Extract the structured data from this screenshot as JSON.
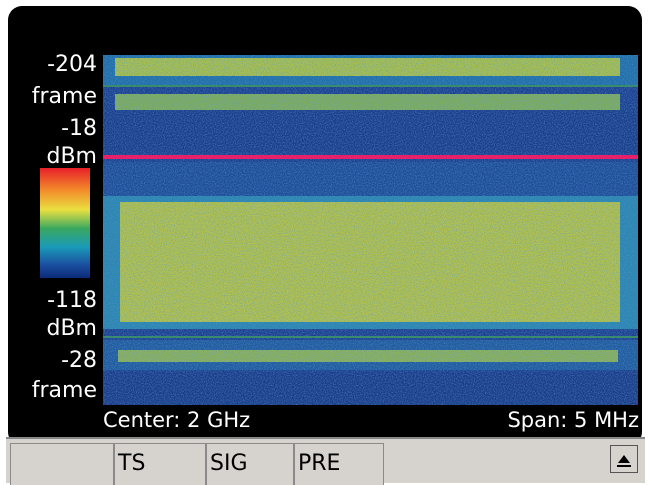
{
  "scale_labels": {
    "top_frame_value": "-204",
    "top_frame_unit": "frame",
    "top_power_value": "-18",
    "top_power_unit": "dBm",
    "bottom_power_value": "-118",
    "bottom_power_unit": "dBm",
    "bottom_frame_value": "-28",
    "bottom_frame_unit": "frame"
  },
  "status": {
    "center": "Center: 2 GHz",
    "span": "Span: 5 MHz"
  },
  "softkeys": [
    "TS",
    "SIG",
    "PRE"
  ]
}
